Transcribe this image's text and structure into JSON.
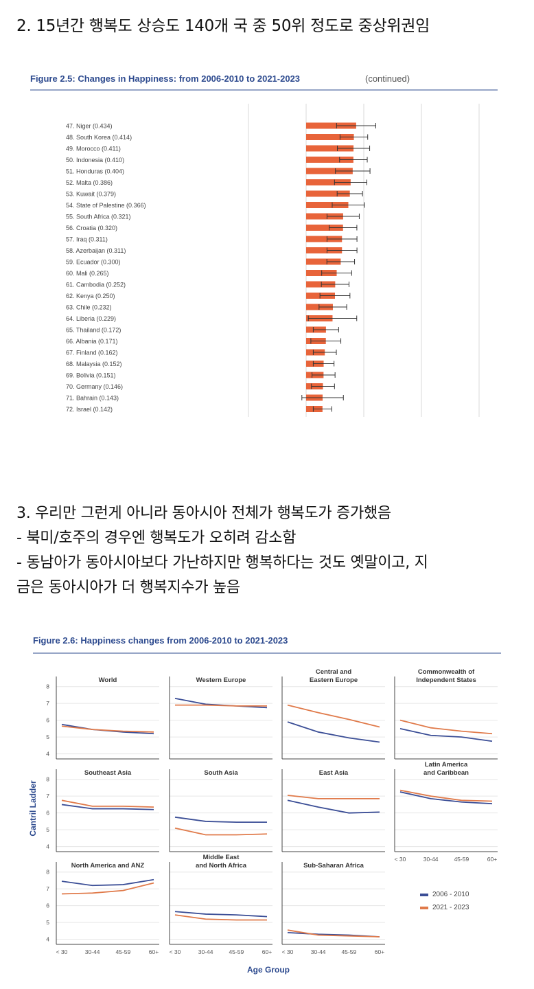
{
  "post": {
    "heading1": "2. 15년간 행복도 상승도 140개 국 중 50위 정도로 중상위권임",
    "paragraph2": [
      "3. 우리만 그런게 아니라 동아시아 전체가 행복도가 증가했음",
      "- 북미/호주의 경우엔 행복도가 오히려 감소함",
      "- 동남아가 동아시아보다 가난하지만 행복하다는 것도 옛말이고, 지",
      "금은 동아시아가 더 행복지수가 높음"
    ]
  },
  "colors": {
    "title_blue": "#2e4b8f",
    "bar_orange": "#e8643a",
    "line_blue": "#3b4e96",
    "line_orange": "#e07a4a",
    "grid": "#d9d9d9"
  },
  "chart_data": [
    {
      "type": "bar",
      "title": "Figure 2.5: Changes in Happiness: from 2006-2010 to 2021-2023",
      "title_suffix": "(continued)",
      "orientation": "horizontal",
      "categories": [
        "47. Niger (0.434)",
        "48. South Korea (0.414)",
        "49. Morocco (0.411)",
        "50. Indonesia (0.410)",
        "51. Honduras (0.404)",
        "52. Malta (0.386)",
        "53. Kuwait (0.379)",
        "54. State of Palestine (0.366)",
        "55. South Africa (0.321)",
        "56. Croatia (0.320)",
        "57. Iraq (0.311)",
        "58. Azerbaijan (0.311)",
        "59. Ecuador (0.300)",
        "60. Mali (0.265)",
        "61. Cambodia (0.252)",
        "62. Kenya (0.250)",
        "63. Chile (0.232)",
        "64. Liberia (0.229)",
        "65. Thailand (0.172)",
        "66. Albania (0.171)",
        "67. Finland (0.162)",
        "68. Malaysia (0.152)",
        "69. Bolivia (0.151)",
        "70. Germany (0.146)",
        "71. Bahrain (0.143)",
        "72. Israel (0.142)"
      ],
      "values": [
        0.434,
        0.414,
        0.411,
        0.41,
        0.404,
        0.386,
        0.379,
        0.366,
        0.321,
        0.32,
        0.311,
        0.311,
        0.3,
        0.265,
        0.252,
        0.25,
        0.232,
        0.229,
        0.172,
        0.171,
        0.162,
        0.152,
        0.151,
        0.146,
        0.143,
        0.142
      ],
      "error_halfwidth": [
        0.17,
        0.12,
        0.14,
        0.12,
        0.15,
        0.14,
        0.11,
        0.14,
        0.14,
        0.12,
        0.13,
        0.13,
        0.12,
        0.13,
        0.12,
        0.13,
        0.12,
        0.21,
        0.11,
        0.13,
        0.1,
        0.09,
        0.1,
        0.1,
        0.18,
        0.08
      ],
      "xlim": [
        -2.0,
        2.0
      ],
      "grid": true
    },
    {
      "type": "line",
      "title": "Figure 2.6: Happiness changes from 2006-2010 to 2021-2023",
      "xlabel": "Age Group",
      "ylabel": "Cantril Ladder",
      "x": [
        "< 30",
        "30-44",
        "45-59",
        "60+"
      ],
      "yticks": [
        4,
        5,
        6,
        7,
        8
      ],
      "ylim": [
        3.7,
        8.6
      ],
      "legend": [
        {
          "name": "2006 - 2010",
          "color": "#3b4e96"
        },
        {
          "name": "2021 - 2023",
          "color": "#e07a4a"
        }
      ],
      "panels": [
        {
          "title": "World",
          "series": [
            {
              "name": "2006 - 2010",
              "values": [
                5.75,
                5.45,
                5.3,
                5.2
              ]
            },
            {
              "name": "2021 - 2023",
              "values": [
                5.65,
                5.45,
                5.35,
                5.3
              ]
            }
          ]
        },
        {
          "title": "Western Europe",
          "series": [
            {
              "name": "2006 - 2010",
              "values": [
                7.3,
                6.95,
                6.85,
                6.75
              ]
            },
            {
              "name": "2021 - 2023",
              "values": [
                6.9,
                6.9,
                6.85,
                6.85
              ]
            }
          ]
        },
        {
          "title": "Central and Eastern Europe",
          "series": [
            {
              "name": "2006 - 2010",
              "values": [
                5.9,
                5.3,
                4.95,
                4.7
              ]
            },
            {
              "name": "2021 - 2023",
              "values": [
                6.9,
                6.45,
                6.05,
                5.6
              ]
            }
          ]
        },
        {
          "title": "Commonwealth of Independent States",
          "series": [
            {
              "name": "2006 - 2010",
              "values": [
                5.5,
                5.1,
                5.0,
                4.75
              ]
            },
            {
              "name": "2021 - 2023",
              "values": [
                6.0,
                5.55,
                5.35,
                5.2
              ]
            }
          ]
        },
        {
          "title": "Southeast Asia",
          "series": [
            {
              "name": "2006 - 2010",
              "values": [
                6.5,
                6.25,
                6.25,
                6.2
              ]
            },
            {
              "name": "2021 - 2023",
              "values": [
                6.75,
                6.4,
                6.4,
                6.35
              ]
            }
          ]
        },
        {
          "title": "South Asia",
          "series": [
            {
              "name": "2006 - 2010",
              "values": [
                5.75,
                5.5,
                5.45,
                5.45
              ]
            },
            {
              "name": "2021 - 2023",
              "values": [
                5.1,
                4.7,
                4.7,
                4.75
              ]
            }
          ]
        },
        {
          "title": "East Asia",
          "series": [
            {
              "name": "2006 - 2010",
              "values": [
                6.75,
                6.35,
                6.0,
                6.05
              ]
            },
            {
              "name": "2021 - 2023",
              "values": [
                7.05,
                6.85,
                6.85,
                6.85
              ]
            }
          ]
        },
        {
          "title": "Latin America and Caribbean",
          "series": [
            {
              "name": "2006 - 2010",
              "values": [
                7.25,
                6.85,
                6.65,
                6.55
              ]
            },
            {
              "name": "2021 - 2023",
              "values": [
                7.35,
                7.0,
                6.75,
                6.7
              ]
            }
          ]
        },
        {
          "title": "North America and ANZ",
          "series": [
            {
              "name": "2006 - 2010",
              "values": [
                7.45,
                7.2,
                7.25,
                7.55
              ]
            },
            {
              "name": "2021 - 2023",
              "values": [
                6.7,
                6.75,
                6.9,
                7.35
              ]
            }
          ]
        },
        {
          "title": "Middle East and North Africa",
          "series": [
            {
              "name": "2006 - 2010",
              "values": [
                5.65,
                5.5,
                5.45,
                5.35
              ]
            },
            {
              "name": "2021 - 2023",
              "values": [
                5.45,
                5.2,
                5.15,
                5.15
              ]
            }
          ]
        },
        {
          "title": "Sub-Saharan Africa",
          "series": [
            {
              "name": "2006 - 2010",
              "values": [
                4.4,
                4.3,
                4.25,
                4.15
              ]
            },
            {
              "name": "2021 - 2023",
              "values": [
                4.55,
                4.25,
                4.2,
                4.15
              ]
            }
          ]
        }
      ]
    }
  ]
}
